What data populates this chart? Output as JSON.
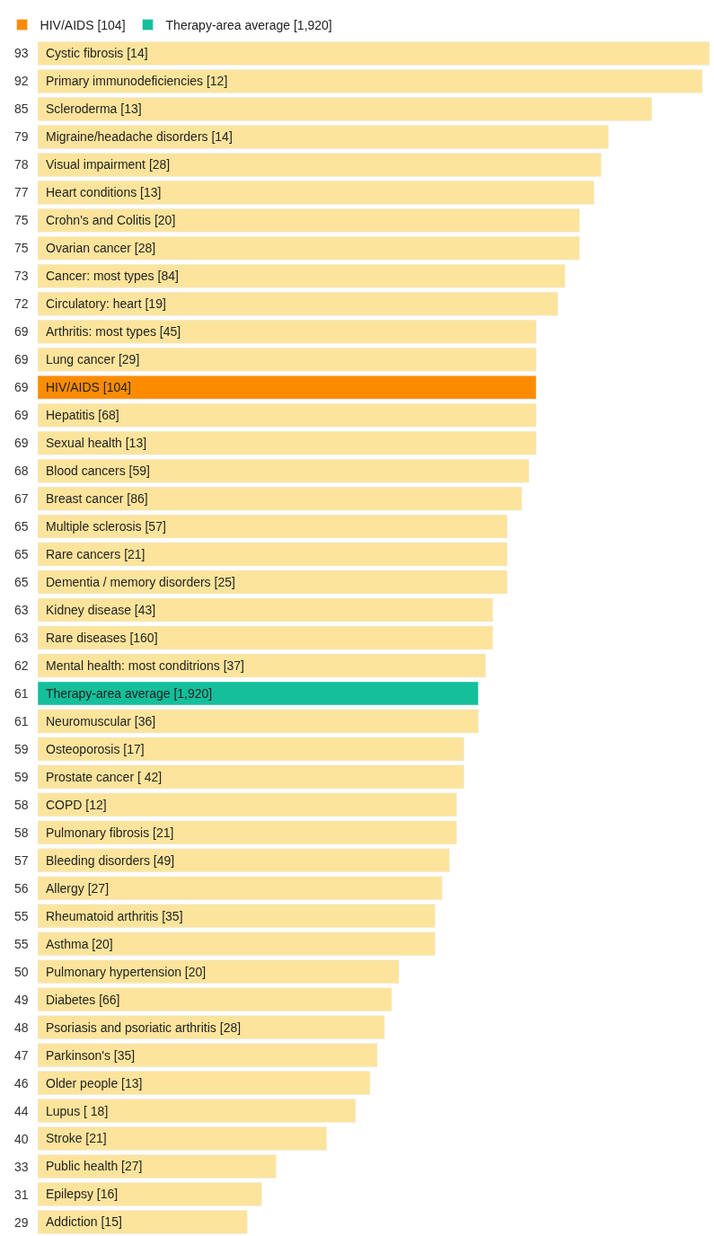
{
  "chart_data": {
    "type": "bar",
    "orientation": "horizontal",
    "stacked": false,
    "data_labels": true,
    "legend": "top left",
    "tick_labels": "y",
    "xlim": [
      0,
      93
    ],
    "categories": [
      "Cystic fibrosis [14]",
      "Primary immunodeficiencies [12]",
      "Scleroderma [13]",
      "Migraine/headache disorders [14]",
      "Visual impairment [28]",
      "Heart conditions [13]",
      "Crohn's and Colitis [20]",
      "Ovarian cancer [28]",
      "Cancer: most types [84]",
      "Circulatory: heart [19]",
      "Arthritis: most types [45]",
      "Lung cancer [29]",
      "HIV/AIDS [104]",
      "Hepatitis [68]",
      "Sexual health [13]",
      "Blood cancers [59]",
      "Breast cancer [86]",
      "Multiple sclerosis [57]",
      "Rare cancers [21]",
      "Dementia / memory disorders [25]",
      "Kidney disease [43]",
      "Rare diseases [160]",
      "Mental health: most conditrions [37]",
      "Therapy-area average [1,920]",
      "Neuromuscular [36]",
      "Osteoporosis [17]",
      "Prostate cancer [ 42]",
      "COPD [12]",
      "Pulmonary fibrosis [21]",
      "Bleeding disorders [49]",
      "Allergy [27]",
      "Rheumatoid arthritis [35]",
      "Asthma [20]",
      "Pulmonary hypertension [20]",
      "Diabetes [66]",
      "Psoriasis and psoriatic arthritis [28]",
      "Parkinson's [35]",
      "Older people [13]",
      "Lupus [ 18]",
      "Stroke [21]",
      "Public health [27]",
      "Epilepsy [16]",
      "Addiction [15]"
    ],
    "series": [
      {
        "color": "#fde49c",
        "values": [
          93,
          92,
          85,
          79,
          78,
          77,
          75,
          75,
          73,
          72,
          69,
          69,
          null,
          69,
          69,
          68,
          67,
          65,
          65,
          65,
          63,
          63,
          62,
          null,
          61,
          59,
          59,
          58,
          58,
          57,
          56,
          55,
          55,
          50,
          49,
          48,
          47,
          46,
          44,
          40,
          33,
          31,
          29
        ]
      },
      {
        "name": "HIV/AIDS [104]",
        "color": "#fb8c00",
        "values": [
          null,
          null,
          null,
          null,
          null,
          null,
          null,
          null,
          null,
          null,
          null,
          null,
          69,
          null,
          null,
          null,
          null,
          null,
          null,
          null,
          null,
          null,
          null,
          null,
          null,
          null,
          null,
          null,
          null,
          null,
          null,
          null,
          null,
          null,
          null,
          null,
          null,
          null,
          null,
          null,
          null,
          null,
          null
        ]
      },
      {
        "name": "Therapy-area average [1,920]",
        "color": "#14bf9b",
        "values": [
          null,
          null,
          null,
          null,
          null,
          null,
          null,
          null,
          null,
          null,
          null,
          null,
          null,
          null,
          null,
          null,
          null,
          null,
          null,
          null,
          null,
          null,
          null,
          61,
          null,
          null,
          null,
          null,
          null,
          null,
          null,
          null,
          null,
          null,
          null,
          null,
          null,
          null,
          null,
          null,
          null,
          null,
          null
        ]
      }
    ]
  }
}
